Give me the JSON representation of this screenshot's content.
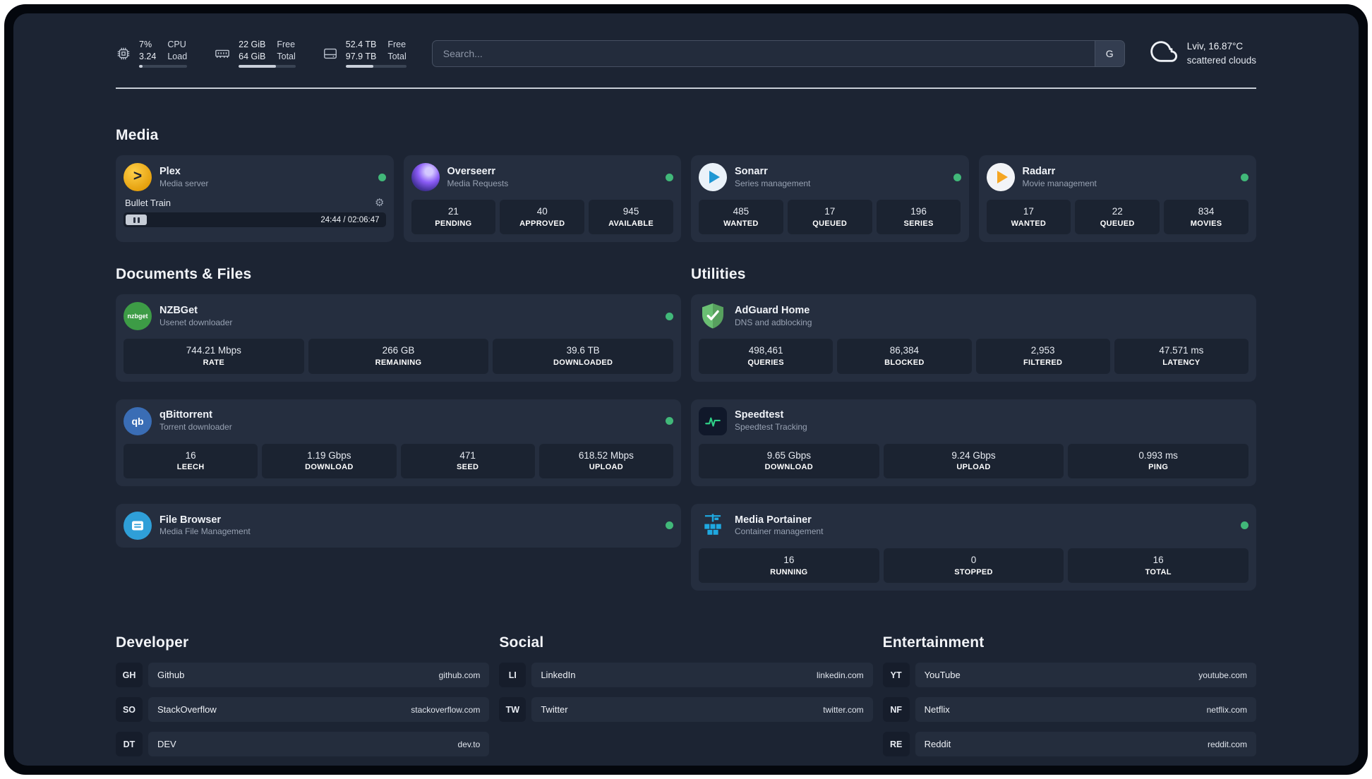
{
  "colors": {
    "status_online": "#41b879",
    "background": "#1c2433",
    "card": "#252e3f"
  },
  "topbar": {
    "resources": [
      {
        "icon": "cpu-icon",
        "value_top": "7%",
        "value_bottom": "3.24",
        "label_top": "CPU",
        "label_bottom": "Load",
        "progress": 7
      },
      {
        "icon": "memory-icon",
        "value_top": "22 GiB",
        "value_bottom": "64 GiB",
        "label_top": "Free",
        "label_bottom": "Total",
        "progress": 66
      },
      {
        "icon": "disk-icon",
        "value_top": "52.4 TB",
        "value_bottom": "97.9 TB",
        "label_top": "Free",
        "label_bottom": "Total",
        "progress": 46
      }
    ],
    "search": {
      "placeholder": "Search...",
      "button_label": "G"
    },
    "weather": {
      "icon": "cloud-icon",
      "location": "Lviv, 16.87°C",
      "condition": "scattered clouds"
    }
  },
  "sections": {
    "media": {
      "title": "Media",
      "plex": {
        "name": "Plex",
        "subtitle": "Media server",
        "icon": "plex-icon",
        "player_track": "Bullet Train",
        "player_time": "24:44 / 02:06:47"
      },
      "overseerr": {
        "name": "Overseerr",
        "subtitle": "Media Requests",
        "icon": "overseerr-icon",
        "stats": [
          {
            "value": "21",
            "label": "PENDING"
          },
          {
            "value": "40",
            "label": "APPROVED"
          },
          {
            "value": "945",
            "label": "AVAILABLE"
          }
        ]
      },
      "sonarr": {
        "name": "Sonarr",
        "subtitle": "Series management",
        "icon": "sonarr-icon",
        "stats": [
          {
            "value": "485",
            "label": "WANTED"
          },
          {
            "value": "17",
            "label": "QUEUED"
          },
          {
            "value": "196",
            "label": "SERIES"
          }
        ]
      },
      "radarr": {
        "name": "Radarr",
        "subtitle": "Movie management",
        "icon": "radarr-icon",
        "stats": [
          {
            "value": "17",
            "label": "WANTED"
          },
          {
            "value": "22",
            "label": "QUEUED"
          },
          {
            "value": "834",
            "label": "MOVIES"
          }
        ]
      }
    },
    "documents": {
      "title": "Documents & Files",
      "nzbget": {
        "name": "NZBGet",
        "subtitle": "Usenet downloader",
        "icon": "nzbget-icon",
        "icon_text": "nzbget",
        "stats": [
          {
            "value": "744.21 Mbps",
            "label": "RATE"
          },
          {
            "value": "266 GB",
            "label": "REMAINING"
          },
          {
            "value": "39.6 TB",
            "label": "DOWNLOADED"
          }
        ]
      },
      "qbittorrent": {
        "name": "qBittorrent",
        "subtitle": "Torrent downloader",
        "icon": "qbittorrent-icon",
        "icon_text": "qb",
        "stats": [
          {
            "value": "16",
            "label": "LEECH"
          },
          {
            "value": "1.19 Gbps",
            "label": "DOWNLOAD"
          },
          {
            "value": "471",
            "label": "SEED"
          },
          {
            "value": "618.52 Mbps",
            "label": "UPLOAD"
          }
        ]
      },
      "filebrowser": {
        "name": "File Browser",
        "subtitle": "Media File Management",
        "icon": "filebrowser-icon"
      }
    },
    "utilities": {
      "title": "Utilities",
      "adguard": {
        "name": "AdGuard Home",
        "subtitle": "DNS and adblocking",
        "icon": "adguard-icon",
        "stats": [
          {
            "value": "498,461",
            "label": "QUERIES"
          },
          {
            "value": "86,384",
            "label": "BLOCKED"
          },
          {
            "value": "2,953",
            "label": "FILTERED"
          },
          {
            "value": "47.571 ms",
            "label": "LATENCY"
          }
        ]
      },
      "speedtest": {
        "name": "Speedtest",
        "subtitle": "Speedtest Tracking",
        "icon": "speedtest-icon",
        "stats": [
          {
            "value": "9.65 Gbps",
            "label": "DOWNLOAD"
          },
          {
            "value": "9.24 Gbps",
            "label": "UPLOAD"
          },
          {
            "value": "0.993 ms",
            "label": "PING"
          }
        ]
      },
      "portainer": {
        "name": "Media Portainer",
        "subtitle": "Container management",
        "icon": "portainer-icon",
        "stats": [
          {
            "value": "16",
            "label": "RUNNING"
          },
          {
            "value": "0",
            "label": "STOPPED"
          },
          {
            "value": "16",
            "label": "TOTAL"
          }
        ]
      }
    }
  },
  "bookmarks": {
    "developer": {
      "title": "Developer",
      "items": [
        {
          "abbr": "GH",
          "name": "Github",
          "url": "github.com"
        },
        {
          "abbr": "SO",
          "name": "StackOverflow",
          "url": "stackoverflow.com"
        },
        {
          "abbr": "DT",
          "name": "DEV",
          "url": "dev.to"
        }
      ]
    },
    "social": {
      "title": "Social",
      "items": [
        {
          "abbr": "LI",
          "name": "LinkedIn",
          "url": "linkedin.com"
        },
        {
          "abbr": "TW",
          "name": "Twitter",
          "url": "twitter.com"
        }
      ]
    },
    "entertainment": {
      "title": "Entertainment",
      "items": [
        {
          "abbr": "YT",
          "name": "YouTube",
          "url": "youtube.com"
        },
        {
          "abbr": "NF",
          "name": "Netflix",
          "url": "netflix.com"
        },
        {
          "abbr": "RE",
          "name": "Reddit",
          "url": "reddit.com"
        }
      ]
    }
  }
}
